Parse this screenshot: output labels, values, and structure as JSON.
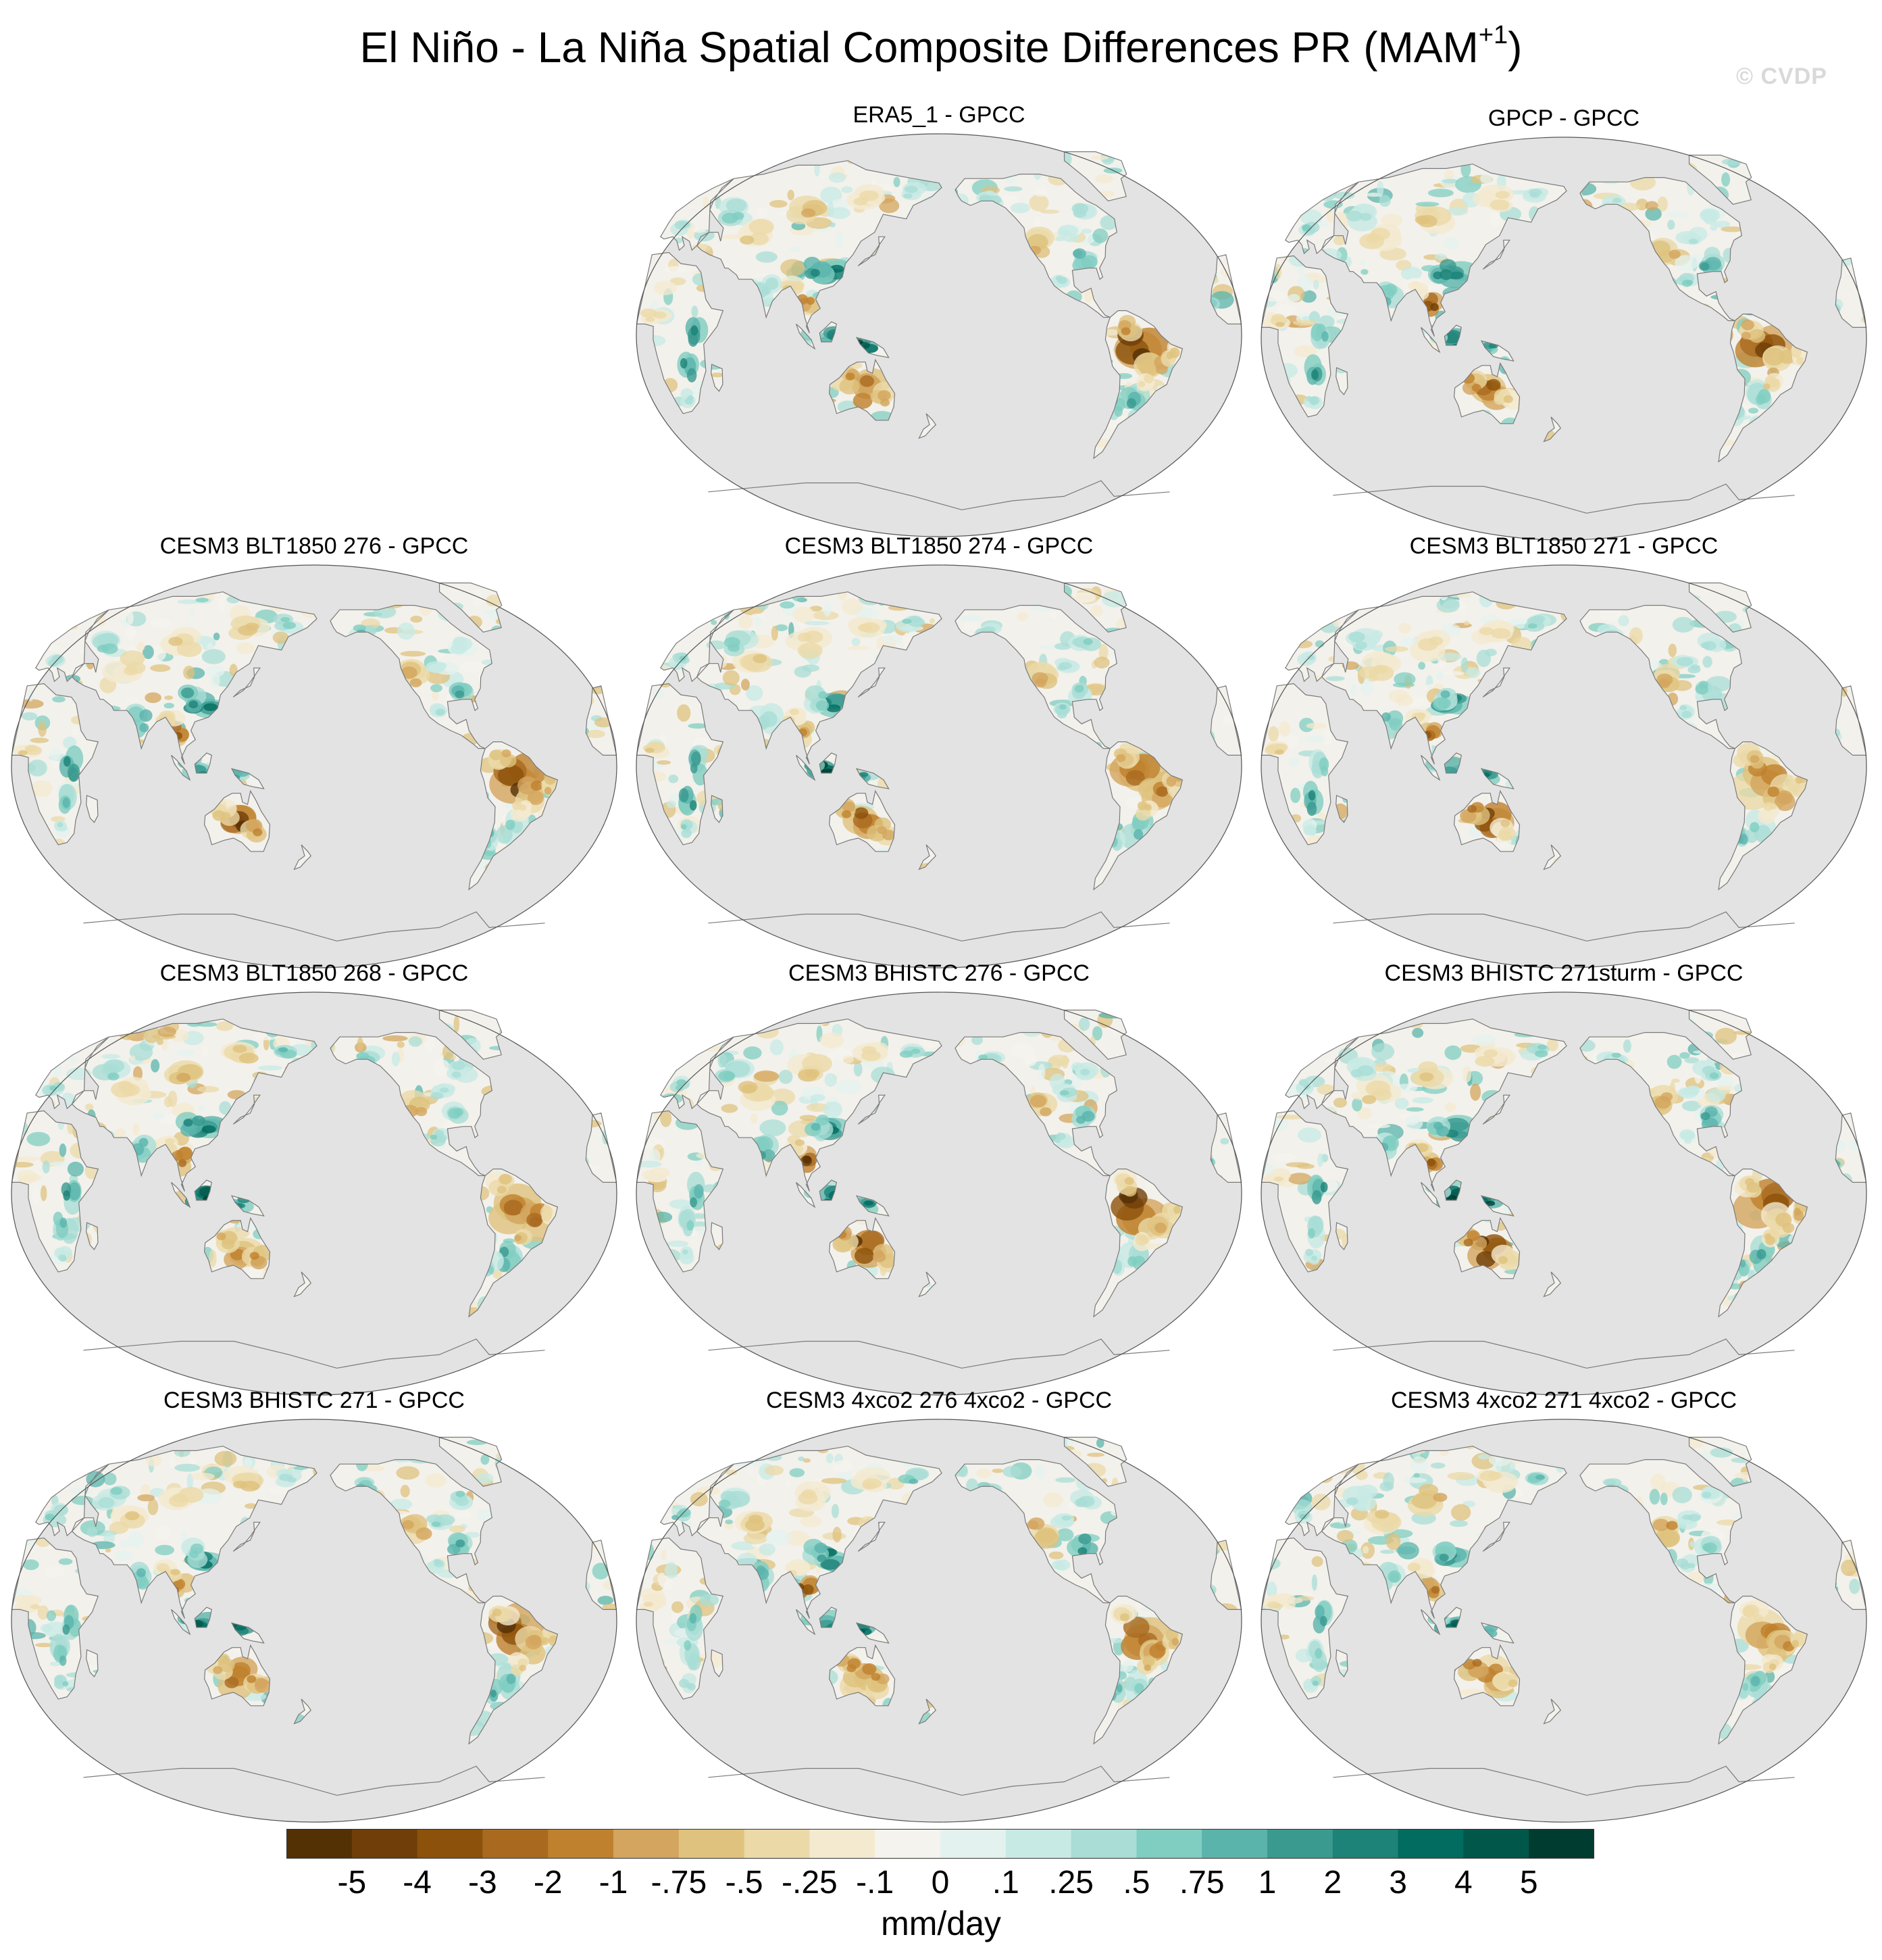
{
  "title": {
    "main": "El Niño - La Niña Spatial Composite Differences PR (MAM",
    "superscript": "+1",
    "close": ")"
  },
  "watermark": "© CVDP",
  "panels": [
    {
      "label": "ERA5_1 - GPCC",
      "seed": 11
    },
    {
      "label": "GPCP - GPCC",
      "seed": 23
    },
    {
      "label": "CESM3 BLT1850 276 - GPCC",
      "seed": 37
    },
    {
      "label": "CESM3 BLT1850 274 - GPCC",
      "seed": 41
    },
    {
      "label": "CESM3 BLT1850 271 - GPCC",
      "seed": 53
    },
    {
      "label": "CESM3 BLT1850 268 - GPCC",
      "seed": 67
    },
    {
      "label": "CESM3 BHISTC 276 - GPCC",
      "seed": 71
    },
    {
      "label": "CESM3 BHISTC 271sturm - GPCC",
      "seed": 83
    },
    {
      "label": "CESM3 BHISTC 271 - GPCC",
      "seed": 97
    },
    {
      "label": "CESM3 4xco2 276 4xco2 - GPCC",
      "seed": 101
    },
    {
      "label": "CESM3 4xco2 271 4xco2 - GPCC",
      "seed": 113
    }
  ],
  "colorbar": {
    "labels": [
      "-5",
      "-4",
      "-3",
      "-2",
      "-1",
      "-.75",
      "-.5",
      "-.25",
      "-.1",
      "0",
      ".1",
      ".25",
      ".5",
      ".75",
      "1",
      "2",
      "3",
      "4",
      "5"
    ],
    "colors": [
      "#543005",
      "#6f3e09",
      "#8c510a",
      "#a96a20",
      "#bf812d",
      "#d3a55e",
      "#dfc27d",
      "#ebd9a8",
      "#f4ead0",
      "#f5f3ee",
      "#e4f2ef",
      "#c7eae5",
      "#a9ddd6",
      "#80cdc1",
      "#5ab4ac",
      "#3a9a90",
      "#1d8277",
      "#016c5f",
      "#01574a",
      "#003c30"
    ],
    "units": "mm/day"
  },
  "map_colors": {
    "ocean": "#e3e3e3",
    "coast": "#7a7a7a",
    "neutral_land": "#f3f1ec"
  }
}
